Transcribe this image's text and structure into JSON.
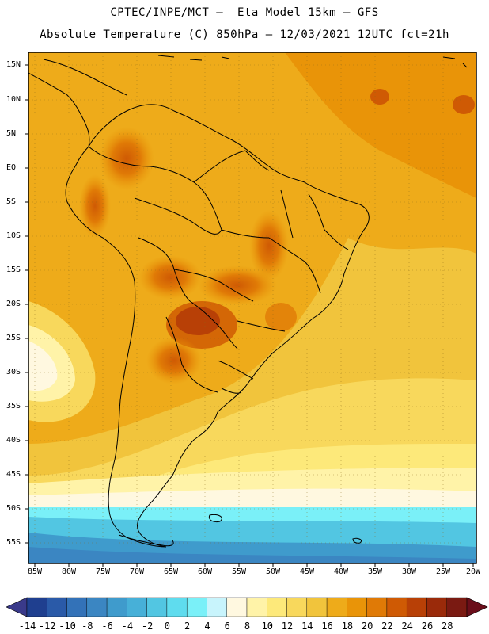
{
  "header": {
    "title_line1": "CPTEC/INPE/MCT –  Eta Model 15km – GFS",
    "title_line2": "Absolute Temperature (C) 850hPa – 12/03/2021 12UTC fct=21h"
  },
  "axes": {
    "lat_labels": [
      "15N",
      "10N",
      "5N",
      "EQ",
      "5S",
      "10S",
      "15S",
      "20S",
      "25S",
      "30S",
      "35S",
      "40S",
      "45S",
      "50S",
      "55S"
    ],
    "lon_labels": [
      "85W",
      "80W",
      "75W",
      "70W",
      "65W",
      "60W",
      "55W",
      "50W",
      "45W",
      "40W",
      "35W",
      "30W",
      "25W",
      "20W"
    ]
  },
  "colorbar": {
    "labels": [
      "-14",
      "-12",
      "-10",
      "-8",
      "-6",
      "-4",
      "-2",
      "0",
      "2",
      "4",
      "6",
      "8",
      "10",
      "12",
      "14",
      "16",
      "18",
      "20",
      "22",
      "24",
      "26",
      "28"
    ],
    "colors": [
      "#1f3f8f",
      "#2a5aa8",
      "#3372b8",
      "#3b86c2",
      "#3f9bcc",
      "#47b0d8",
      "#52c6e2",
      "#5fdcee",
      "#7af0f8",
      "#c8f4fc",
      "#fff8e0",
      "#fff3a8",
      "#fde97a",
      "#f8d85c",
      "#f1c43c",
      "#eeab1a",
      "#e99408",
      "#e07a06",
      "#cf5a04",
      "#b84006",
      "#9a2a0a",
      "#7a1a12"
    ]
  }
}
